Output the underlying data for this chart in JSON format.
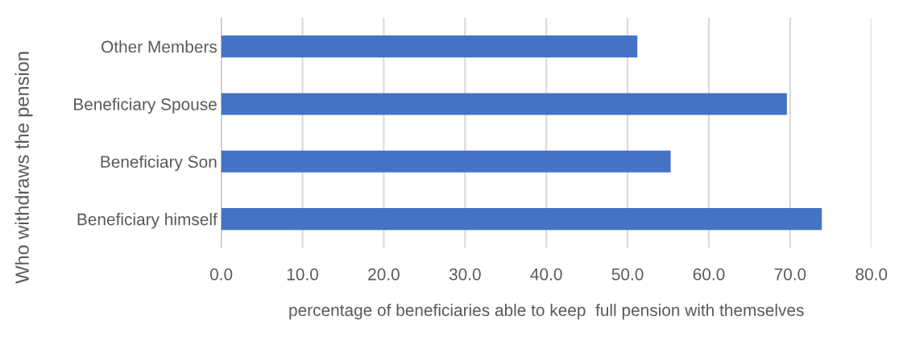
{
  "chart_data": {
    "type": "bar",
    "orientation": "horizontal",
    "categories": [
      "Other Members",
      "Beneficiary Spouse",
      "Beneficiary Son",
      "Beneficiary himself"
    ],
    "values": [
      51.2,
      69.6,
      55.3,
      73.9
    ],
    "color": "#4472c4",
    "xlabel": "percentage of beneficiaries able to keep  full pension with themselves",
    "ylabel": "Who withdraws the pension",
    "xlim": [
      0,
      80
    ],
    "xticks": [
      {
        "value": 0,
        "label": "0.0"
      },
      {
        "value": 10,
        "label": "10.0"
      },
      {
        "value": 20,
        "label": "20.0"
      },
      {
        "value": 30,
        "label": "30.0"
      },
      {
        "value": 40,
        "label": "40.0"
      },
      {
        "value": 50,
        "label": "50.0"
      },
      {
        "value": 60,
        "label": "60.0"
      },
      {
        "value": 70,
        "label": "70.0"
      },
      {
        "value": 80,
        "label": "80.0"
      }
    ],
    "grid": "x"
  }
}
